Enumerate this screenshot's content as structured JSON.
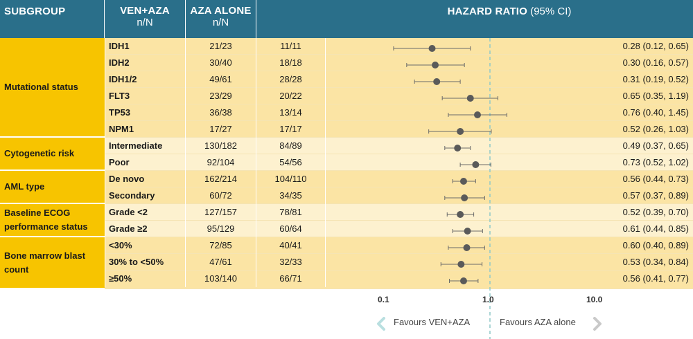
{
  "header": {
    "subgroup": "SUBGROUP",
    "ven_title": "VEN+AZA",
    "ven_sub": "n/N",
    "aza_title": "AZA ALONE",
    "aza_sub": "n/N",
    "hr_title": "HAZARD RATIO",
    "hr_ci": " (95% CI)"
  },
  "groups": [
    {
      "label": "Mutational status"
    },
    {
      "label": "Cytogenetic risk"
    },
    {
      "label": "AML type"
    },
    {
      "label": "Baseline ECOG performance status"
    },
    {
      "label": "Bone marrow blast count"
    }
  ],
  "rows": [
    {
      "name": "IDH1",
      "ven": "21/23",
      "aza": "11/11",
      "hr_text": "0.28 (0.12, 0.65)"
    },
    {
      "name": "IDH2",
      "ven": "30/40",
      "aza": "18/18",
      "hr_text": "0.30 (0.16, 0.57)"
    },
    {
      "name": "IDH1/2",
      "ven": "49/61",
      "aza": "28/28",
      "hr_text": "0.31 (0.19, 0.52)"
    },
    {
      "name": "FLT3",
      "ven": "23/29",
      "aza": "20/22",
      "hr_text": "0.65 (0.35, 1.19)"
    },
    {
      "name": "TP53",
      "ven": "36/38",
      "aza": "13/14",
      "hr_text": "0.76 (0.40, 1.45)"
    },
    {
      "name": "NPM1",
      "ven": "17/27",
      "aza": "17/17",
      "hr_text": "0.52 (0.26, 1.03)"
    },
    {
      "name": "Intermediate",
      "ven": "130/182",
      "aza": "84/89",
      "hr_text": "0.49 (0.37, 0.65)"
    },
    {
      "name": "Poor",
      "ven": "92/104",
      "aza": "54/56",
      "hr_text": "0.73 (0.52, 1.02)"
    },
    {
      "name": "De novo",
      "ven": "162/214",
      "aza": "104/110",
      "hr_text": "0.56 (0.44, 0.73)"
    },
    {
      "name": "Secondary",
      "ven": "60/72",
      "aza": "34/35",
      "hr_text": "0.57 (0.37, 0.89)"
    },
    {
      "name": "Grade <2",
      "ven": "127/157",
      "aza": "78/81",
      "hr_text": "0.52 (0.39, 0.70)"
    },
    {
      "name": "Grade ≥2",
      "ven": "95/129",
      "aza": "60/64",
      "hr_text": "0.61 (0.44, 0.85)"
    },
    {
      "name": "<30%",
      "ven": "72/85",
      "aza": "40/41",
      "hr_text": "0.60 (0.40, 0.89)"
    },
    {
      "name": "30% to <50%",
      "ven": "47/61",
      "aza": "32/33",
      "hr_text": "0.53 (0.34, 0.84)"
    },
    {
      "name": "≥50%",
      "ven": "103/140",
      "aza": "66/71",
      "hr_text": "0.56 (0.41, 0.77)"
    }
  ],
  "axis": {
    "tick_0_1": "0.1",
    "tick_1_0": "1.0",
    "tick_10_0": "10.0"
  },
  "favours": {
    "left": "Favours VEN+AZA",
    "right": "Favours AZA alone"
  },
  "colors": {
    "header": "#2a6f8a",
    "group": "#f7c400",
    "row_odd": "#fbe4a4",
    "row_even": "#fdf1cf",
    "marker": "#5a5a5a",
    "ref_line": "#8fc9c9",
    "arrow": "#b9dfe0"
  },
  "chart_data": {
    "type": "forest",
    "scale": "log",
    "xlim": [
      0.1,
      10.0
    ],
    "xticks": [
      0.1,
      1.0,
      10.0
    ],
    "reference": 1.0,
    "points": [
      {
        "label": "IDH1",
        "hr": 0.28,
        "lo": 0.12,
        "hi": 0.65
      },
      {
        "label": "IDH2",
        "hr": 0.3,
        "lo": 0.16,
        "hi": 0.57
      },
      {
        "label": "IDH1/2",
        "hr": 0.31,
        "lo": 0.19,
        "hi": 0.52
      },
      {
        "label": "FLT3",
        "hr": 0.65,
        "lo": 0.35,
        "hi": 1.19
      },
      {
        "label": "TP53",
        "hr": 0.76,
        "lo": 0.4,
        "hi": 1.45
      },
      {
        "label": "NPM1",
        "hr": 0.52,
        "lo": 0.26,
        "hi": 1.03
      },
      {
        "label": "Intermediate",
        "hr": 0.49,
        "lo": 0.37,
        "hi": 0.65
      },
      {
        "label": "Poor",
        "hr": 0.73,
        "lo": 0.52,
        "hi": 1.02
      },
      {
        "label": "De novo",
        "hr": 0.56,
        "lo": 0.44,
        "hi": 0.73
      },
      {
        "label": "Secondary",
        "hr": 0.57,
        "lo": 0.37,
        "hi": 0.89
      },
      {
        "label": "Grade <2",
        "hr": 0.52,
        "lo": 0.39,
        "hi": 0.7
      },
      {
        "label": "Grade ≥2",
        "hr": 0.61,
        "lo": 0.44,
        "hi": 0.85
      },
      {
        "label": "<30%",
        "hr": 0.6,
        "lo": 0.4,
        "hi": 0.89
      },
      {
        "label": "30% to <50%",
        "hr": 0.53,
        "lo": 0.34,
        "hi": 0.84
      },
      {
        "label": "≥50%",
        "hr": 0.56,
        "lo": 0.41,
        "hi": 0.77
      }
    ]
  }
}
